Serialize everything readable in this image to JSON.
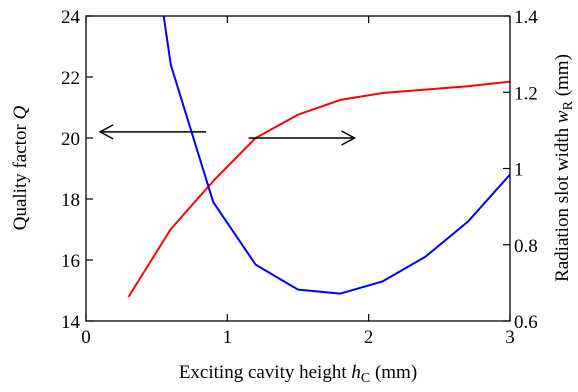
{
  "chart_data": {
    "type": "line",
    "x_axis": {
      "label_main": "Exciting cavity height ",
      "label_var": "h",
      "label_sub": "C",
      "label_unit": " (mm)",
      "range": [
        0,
        3
      ],
      "ticks": [
        0,
        1,
        2,
        3
      ],
      "tick_labels": [
        "0",
        "1",
        "2",
        "3"
      ]
    },
    "y_left": {
      "label_main": "Quality factor ",
      "label_var": "Q",
      "range": [
        14,
        24
      ],
      "ticks": [
        14,
        16,
        18,
        20,
        22,
        24
      ],
      "tick_labels": [
        "14",
        "16",
        "18",
        "20",
        "22",
        "24"
      ]
    },
    "y_right": {
      "label_main": "Radiation slot width ",
      "label_var": "w",
      "label_sub": "R",
      "label_unit": " (mm)",
      "range": [
        0.6,
        1.4
      ],
      "ticks": [
        0.6,
        0.8,
        1.0,
        1.2,
        1.4
      ],
      "tick_labels": [
        "0.6",
        "0.8",
        "1",
        "1.2",
        "1.4"
      ]
    },
    "series": [
      {
        "axis": "right",
        "color": "#ff0000",
        "x": [
          0.3,
          0.6,
          0.9,
          1.2,
          1.5,
          1.8,
          2.1,
          2.4,
          2.7,
          3.0
        ],
        "y": [
          0.663,
          0.841,
          0.967,
          1.08,
          1.141,
          1.18,
          1.198,
          1.207,
          1.216,
          1.228
        ]
      },
      {
        "axis": "left",
        "color": "#0000ff",
        "x": [
          0.55,
          0.6,
          0.9,
          1.2,
          1.5,
          1.8,
          2.1,
          2.4,
          2.7,
          3.0
        ],
        "y": [
          24.0,
          22.4,
          17.9,
          15.85,
          15.03,
          14.9,
          15.3,
          16.1,
          17.25,
          18.8
        ]
      }
    ],
    "annotations": [
      {
        "type": "arrow",
        "direction": "left",
        "axis": "left",
        "x_from": 0.85,
        "x_to": 0.1,
        "y": 20.2
      },
      {
        "type": "arrow",
        "direction": "right",
        "axis": "left",
        "x_from": 1.15,
        "x_to": 1.9,
        "y": 20.0
      }
    ]
  }
}
